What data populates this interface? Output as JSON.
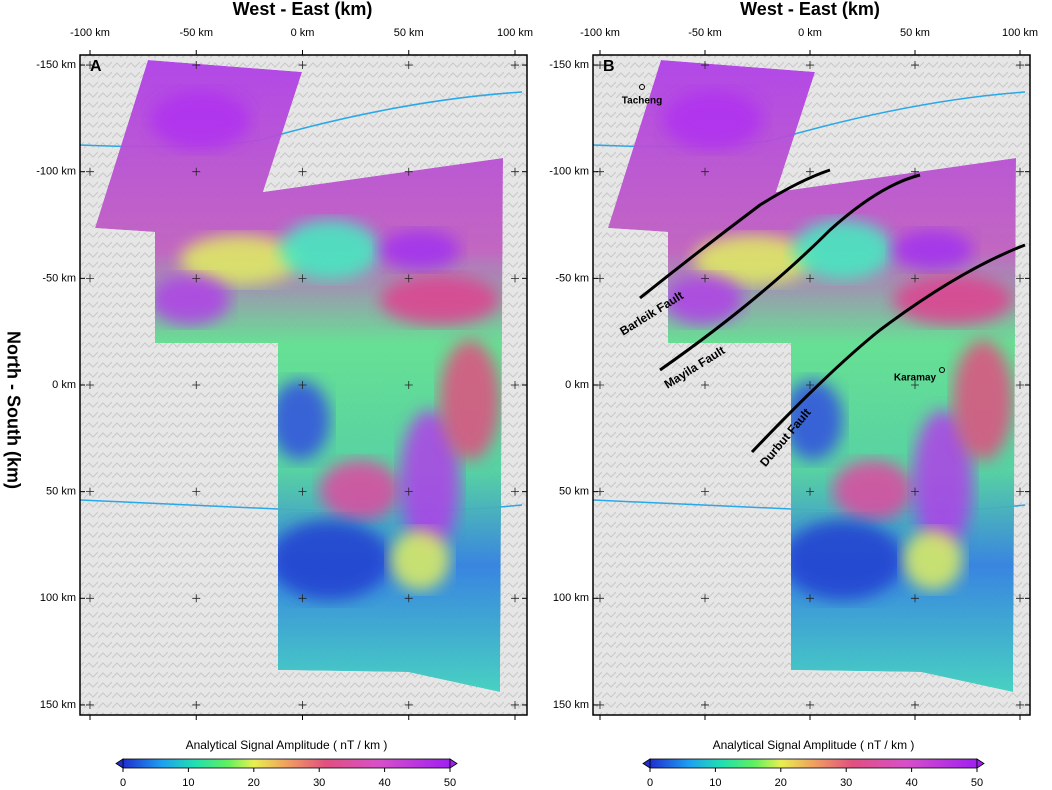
{
  "axis_titles": {
    "x": "West - East (km)",
    "y": "North - South (km)"
  },
  "x_ticks": [
    {
      "value": -100,
      "label": "-100 km"
    },
    {
      "value": -50,
      "label": "-50 km"
    },
    {
      "value": 0,
      "label": "0 km"
    },
    {
      "value": 50,
      "label": "50 km"
    },
    {
      "value": 100,
      "label": "100 km"
    }
  ],
  "y_ticks": [
    {
      "value": -150,
      "label": "-150 km"
    },
    {
      "value": -100,
      "label": "-100 km"
    },
    {
      "value": -50,
      "label": "-50 km"
    },
    {
      "value": 0,
      "label": "0 km"
    },
    {
      "value": 50,
      "label": "50 km"
    },
    {
      "value": 100,
      "label": "100 km"
    },
    {
      "value": 150,
      "label": "150 km"
    }
  ],
  "colorbar": {
    "title": "Analytical Signal Amplitude  ( nT / km )",
    "ticks": [
      0,
      10,
      20,
      30,
      40,
      50
    ]
  },
  "panels": [
    {
      "label": "A"
    },
    {
      "label": "B"
    }
  ],
  "places": [
    "Tacheng",
    "Karamay"
  ],
  "faults": [
    "Barleik Fault",
    "Mayila Fault",
    "Durbut Fault"
  ]
}
